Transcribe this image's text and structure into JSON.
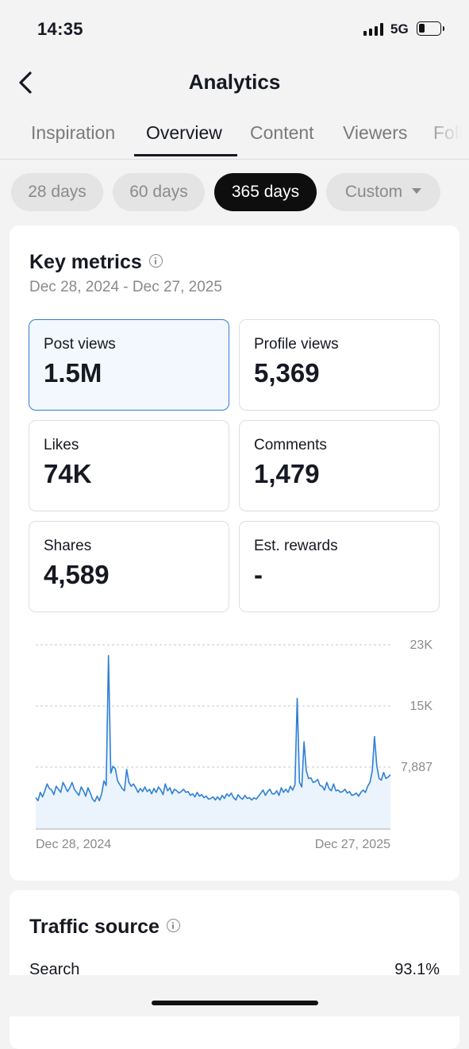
{
  "status": {
    "time": "14:35",
    "network": "5G"
  },
  "header": {
    "title": "Analytics"
  },
  "tabs": [
    {
      "label": "Inspiration"
    },
    {
      "label": "Overview"
    },
    {
      "label": "Content"
    },
    {
      "label": "Viewers"
    },
    {
      "label": "Followers"
    }
  ],
  "active_tab": "Overview",
  "filters": [
    {
      "label": "28 days"
    },
    {
      "label": "60 days"
    },
    {
      "label": "365 days"
    },
    {
      "label": "Custom"
    }
  ],
  "active_filter": "365 days",
  "key_metrics": {
    "title": "Key metrics",
    "date_range": "Dec 28, 2024 - Dec 27, 2025",
    "items": [
      {
        "label": "Post views",
        "value": "1.5M"
      },
      {
        "label": "Profile views",
        "value": "5,369"
      },
      {
        "label": "Likes",
        "value": "74K"
      },
      {
        "label": "Comments",
        "value": "1,479"
      },
      {
        "label": "Shares",
        "value": "4,589"
      },
      {
        "label": "Est. rewards",
        "value": "-"
      }
    ],
    "selected": "Post views"
  },
  "chart_data": {
    "type": "line",
    "x_start_label": "Dec 28, 2024",
    "x_end_label": "Dec 27, 2025",
    "y_tick_labels": [
      "23K",
      "15K",
      "7,887"
    ],
    "y_ticks": [
      23000,
      15000,
      7887
    ],
    "ylim": [
      0,
      23000
    ],
    "grid": "dashed horizontal",
    "color": "#2f7fd8",
    "series": [
      {
        "values": [
          3000,
          2600,
          3700,
          3100,
          3900,
          4800,
          4200,
          4000,
          3400,
          4500,
          4100,
          3700,
          5000,
          4400,
          3800,
          4300,
          5000,
          4100,
          3700,
          3300,
          4400,
          3900,
          3200,
          4300,
          3600,
          2800,
          2500,
          3200,
          2600,
          3500,
          5200,
          4600,
          21600,
          6200,
          7100,
          6800,
          5200,
          4700,
          4200,
          3900,
          6700,
          5000,
          4500,
          4800,
          4300,
          3700,
          4200,
          3800,
          4400,
          3800,
          4100,
          3500,
          4200,
          3700,
          4400,
          4000,
          3400,
          4800,
          3900,
          4300,
          3500,
          4100,
          3900,
          3600,
          3800,
          4100,
          3700,
          3800,
          3300,
          3500,
          3100,
          3700,
          3200,
          3400,
          3000,
          3200,
          2800,
          2900,
          3100,
          2700,
          3100,
          2700,
          3300,
          2900,
          3500,
          3200,
          3600,
          3000,
          2700,
          3400,
          3000,
          2800,
          3300,
          2900,
          3000,
          2700,
          3000,
          2800,
          3200,
          3600,
          4000,
          3300,
          3800,
          4100,
          3500,
          3500,
          3900,
          3300,
          4300,
          3700,
          4100,
          3700,
          4500,
          4000,
          4700,
          16000,
          5000,
          4400,
          10300,
          6500,
          5500,
          5600,
          5000,
          5100,
          5400,
          4600,
          4500,
          4000,
          5000,
          4200,
          3900,
          4800,
          3900,
          4000,
          3700,
          3800,
          4100,
          3600,
          3800,
          3300,
          3400,
          3600,
          3200,
          3700,
          4000,
          3700,
          4500,
          5000,
          6500,
          11000,
          7200,
          5500,
          5300,
          6300,
          5500,
          5700,
          6000
        ]
      }
    ]
  },
  "traffic_source": {
    "title": "Traffic source",
    "rows": [
      {
        "label": "Search",
        "value": "93.1%"
      }
    ]
  }
}
